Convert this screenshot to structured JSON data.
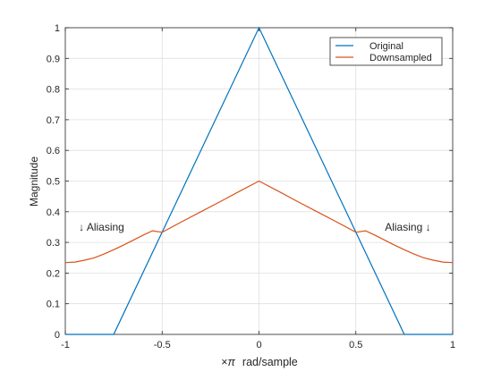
{
  "chart_data": {
    "type": "line",
    "title": "",
    "xlabel_prefix": "×",
    "xlabel_symbol": "π",
    "xlabel_suffix": "rad/sample",
    "ylabel": "Magnitude",
    "xlim": [
      -1,
      1
    ],
    "ylim": [
      0,
      1
    ],
    "xticks": [
      -1,
      -0.5,
      0,
      0.5,
      1
    ],
    "xtick_labels": [
      "-1",
      "-0.5",
      "0",
      "0.5",
      "1"
    ],
    "yticks": [
      0,
      0.1,
      0.2,
      0.3,
      0.4,
      0.5,
      0.6,
      0.7,
      0.8,
      0.9,
      1
    ],
    "ytick_labels": [
      "0",
      "0.1",
      "0.2",
      "0.3",
      "0.4",
      "0.5",
      "0.6",
      "0.7",
      "0.8",
      "0.9",
      "1"
    ],
    "grid": true,
    "legend_position": "top-right",
    "series": [
      {
        "name": "Original",
        "color": "#0072BD",
        "x": [
          -1,
          -0.75,
          0,
          0.75,
          1
        ],
        "y": [
          0,
          0,
          1,
          0,
          0
        ]
      },
      {
        "name": "Downsampled",
        "color": "#D95319",
        "x": [
          -1,
          -0.95,
          -0.9,
          -0.85,
          -0.8,
          -0.75,
          -0.7,
          -0.65,
          -0.6,
          -0.55,
          -0.5,
          -0.4,
          -0.3,
          -0.2,
          -0.1,
          0,
          0.1,
          0.2,
          0.3,
          0.4,
          0.5,
          0.55,
          0.6,
          0.65,
          0.7,
          0.75,
          0.8,
          0.85,
          0.9,
          0.95,
          1
        ],
        "y": [
          0.234,
          0.236,
          0.242,
          0.25,
          0.262,
          0.276,
          0.291,
          0.307,
          0.323,
          0.338,
          0.333,
          0.367,
          0.4,
          0.433,
          0.467,
          0.5,
          0.467,
          0.433,
          0.4,
          0.367,
          0.333,
          0.338,
          0.323,
          0.307,
          0.291,
          0.276,
          0.262,
          0.25,
          0.242,
          0.236,
          0.234
        ]
      }
    ],
    "annotations": [
      {
        "text": "↓  Aliasing",
        "x": -0.93,
        "y": 0.35
      },
      {
        "text": "Aliasing  ↓",
        "x": 0.65,
        "y": 0.35
      }
    ]
  }
}
